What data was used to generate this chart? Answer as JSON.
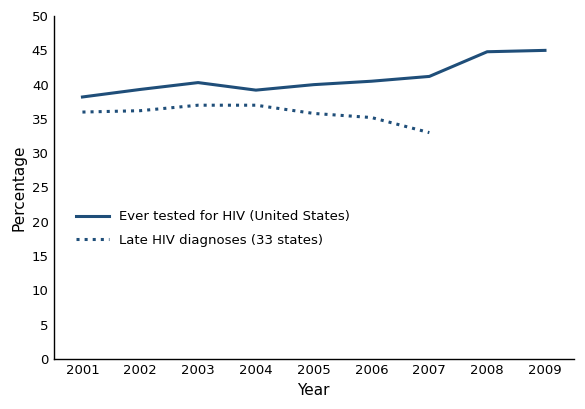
{
  "ever_tested_years": [
    2001,
    2002,
    2003,
    2004,
    2005,
    2006,
    2007,
    2008,
    2009
  ],
  "ever_tested_values": [
    38.2,
    39.3,
    40.3,
    39.2,
    40.0,
    40.5,
    41.2,
    44.8,
    45.0
  ],
  "late_dx_years": [
    2001,
    2002,
    2003,
    2004,
    2005,
    2006,
    2007
  ],
  "late_dx_values": [
    36.0,
    36.2,
    37.0,
    37.0,
    35.8,
    35.2,
    33.0
  ],
  "line_color": "#1f4e79",
  "xlabel": "Year",
  "ylabel": "Percentage",
  "ylim": [
    0,
    50
  ],
  "yticks": [
    0,
    5,
    10,
    15,
    20,
    25,
    30,
    35,
    40,
    45,
    50
  ],
  "xlim": [
    2000.5,
    2009.5
  ],
  "xticks": [
    2001,
    2002,
    2003,
    2004,
    2005,
    2006,
    2007,
    2008,
    2009
  ],
  "legend_solid": "Ever tested for HIV (United States)",
  "legend_dotted": "Late HIV diagnoses (33 states)",
  "line_width": 2.2,
  "dot_size": 6
}
